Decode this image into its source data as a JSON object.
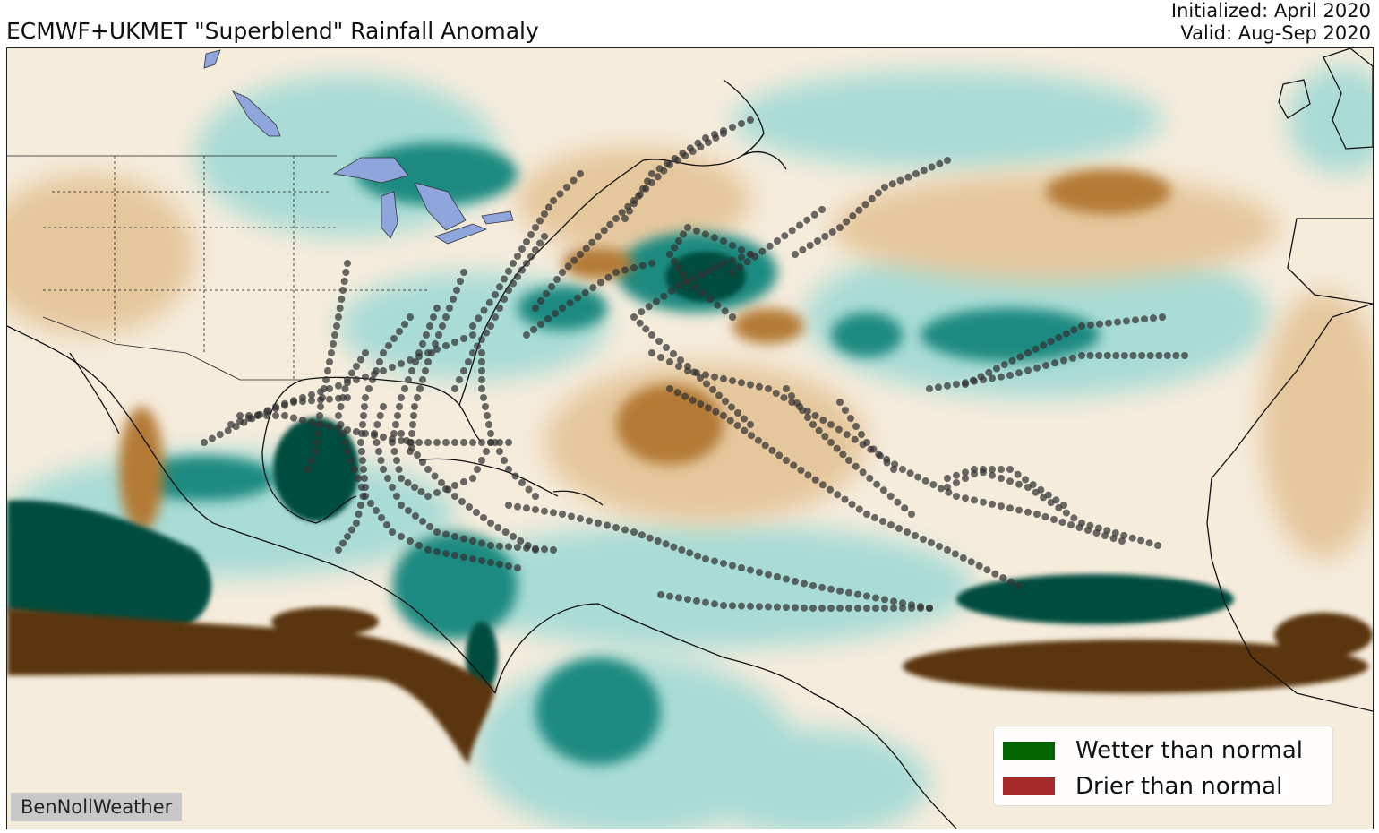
{
  "header": {
    "title": "ECMWF+UKMET \"Superblend\" Rainfall Anomaly",
    "initialized": "Initialized: April 2020",
    "valid": "Valid: Aug-Sep 2020"
  },
  "legend": {
    "items": [
      {
        "label": "Wetter than normal",
        "color": "#006400"
      },
      {
        "label": "Drier than normal",
        "color": "#a52a2a"
      }
    ]
  },
  "credit": "BenNollWeather",
  "colors": {
    "wet_strong": "#004d40",
    "wet_medium": "#1f8a80",
    "wet_light": "#a9dcd5",
    "dry_light": "#e5c79c",
    "dry_medium": "#b37a36",
    "dry_strong": "#5a3508",
    "lake": "#8fa6dc",
    "track_dot": "#333333"
  }
}
